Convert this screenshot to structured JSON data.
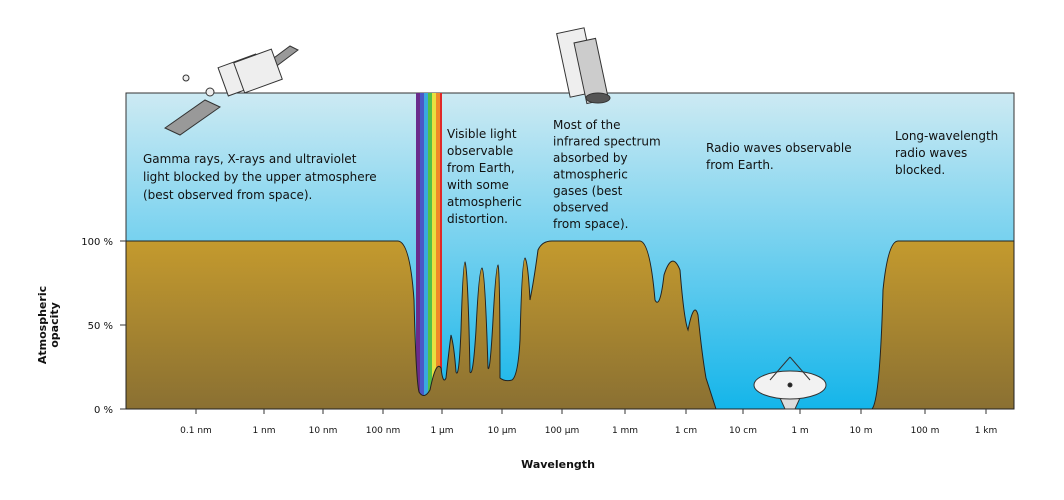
{
  "y_axis": {
    "label_lines": [
      "Atmospheric",
      "opacity"
    ],
    "ticks": [
      "100 %",
      "50 %",
      "0 %"
    ]
  },
  "x_axis": {
    "label": "Wavelength",
    "ticks": [
      "0.1 nm",
      "1 nm",
      "10 nm",
      "100 nm",
      "1 µm",
      "10 µm",
      "100 µm",
      "1 mm",
      "1 cm",
      "10 cm",
      "1 m",
      "10 m",
      "100 m",
      "1 km"
    ]
  },
  "annotations": [
    {
      "lines": [
        "Gamma rays, X-rays and ultraviolet",
        "light blocked by the upper atmosphere",
        "(best observed from space)."
      ]
    },
    {
      "lines": [
        "Visible light",
        "observable",
        "from Earth,",
        "with some",
        "atmospheric",
        "distortion."
      ]
    },
    {
      "lines": [
        "Most of the",
        "infrared spectrum",
        "absorbed by",
        "atmospheric",
        "gases (best",
        "observed",
        "from space)."
      ]
    },
    {
      "lines": [
        "Radio waves observable",
        "from Earth."
      ]
    },
    {
      "lines": [
        "Long-wavelength",
        "radio waves",
        "blocked."
      ]
    }
  ]
}
